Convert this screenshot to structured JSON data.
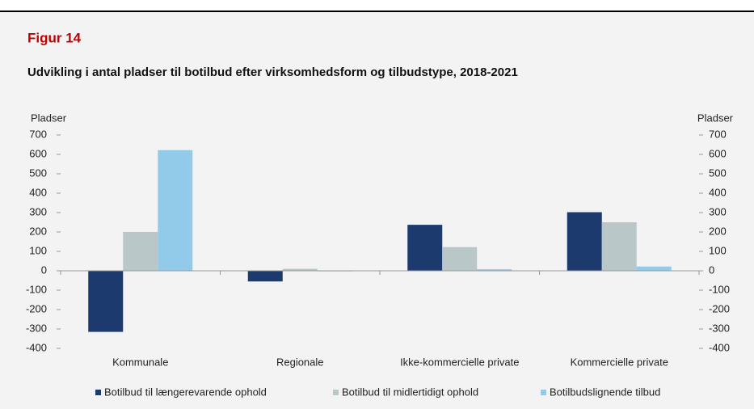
{
  "chart_data": {
    "type": "bar",
    "figure_label": "Figur 14",
    "title": "Udvikling i antal pladser til botilbud efter virksomhedsform og tilbudstype, 2018-2021",
    "y_label": "Pladser",
    "y2_label": "Pladser",
    "categories": [
      "Kommunale",
      "Regionale",
      "Ikke-kommercielle private",
      "Kommercielle private"
    ],
    "series": [
      {
        "name": "Botilbud til længerevarende ophold",
        "color": "#1c3a6e",
        "values": [
          -315,
          -55,
          237,
          302
        ]
      },
      {
        "name": "Botilbud til midlertidigt ophold",
        "color": "#b9c7c8",
        "values": [
          200,
          10,
          122,
          250
        ]
      },
      {
        "name": "Botilbudslignende tilbud",
        "color": "#92cbea",
        "values": [
          622,
          -3,
          8,
          22
        ]
      }
    ],
    "ylim": [
      -400,
      700
    ],
    "yticks": [
      -400,
      -300,
      -200,
      -100,
      0,
      100,
      200,
      300,
      400,
      500,
      600,
      700
    ],
    "y2lim": [
      -400,
      700
    ],
    "y2ticks": [
      -400,
      -300,
      -200,
      -100,
      0,
      100,
      200,
      300,
      400,
      500,
      600,
      700
    ],
    "legend": "bottom"
  }
}
